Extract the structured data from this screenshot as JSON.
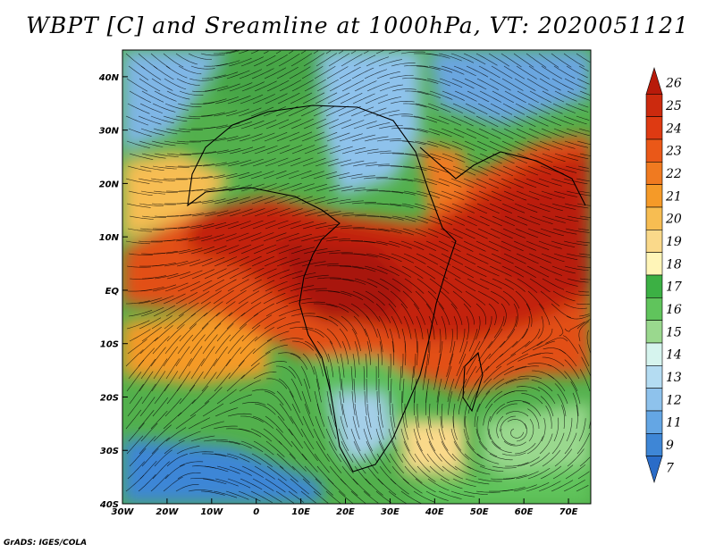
{
  "title": "WBPT [C] and Sreamline at 1000hPa, VT: 2020051121",
  "credit": "GrADS: IGES/COLA",
  "chart_data": {
    "type": "heatmap",
    "title": "WBPT [C] and Sreamline at 1000hPa, VT: 2020051121",
    "variable": "WBPT [C]",
    "overlay": "streamlines",
    "level": "1000hPa",
    "valid_time": "2020051121",
    "x_range": [
      -30,
      75
    ],
    "y_range": [
      -40,
      45
    ],
    "x_ticks": [
      {
        "value": -30,
        "label": "30W"
      },
      {
        "value": -20,
        "label": "20W"
      },
      {
        "value": -10,
        "label": "10W"
      },
      {
        "value": 0,
        "label": "0"
      },
      {
        "value": 10,
        "label": "10E"
      },
      {
        "value": 20,
        "label": "20E"
      },
      {
        "value": 30,
        "label": "30E"
      },
      {
        "value": 40,
        "label": "40E"
      },
      {
        "value": 50,
        "label": "50E"
      },
      {
        "value": 60,
        "label": "60E"
      },
      {
        "value": 70,
        "label": "70E"
      }
    ],
    "y_ticks": [
      {
        "value": 40,
        "label": "40N"
      },
      {
        "value": 30,
        "label": "30N"
      },
      {
        "value": 20,
        "label": "20N"
      },
      {
        "value": 10,
        "label": "10N"
      },
      {
        "value": 0,
        "label": "EQ"
      },
      {
        "value": -10,
        "label": "10S"
      },
      {
        "value": -20,
        "label": "20S"
      },
      {
        "value": -30,
        "label": "30S"
      },
      {
        "value": -40,
        "label": "40S"
      }
    ],
    "colorbar": {
      "labels": [
        "26",
        "25",
        "24",
        "23",
        "22",
        "21",
        "20",
        "19",
        "18",
        "17",
        "16",
        "15",
        "14",
        "13",
        "12",
        "11",
        "9",
        "7"
      ],
      "colors": [
        "#b81a0a",
        "#cc2a0e",
        "#de3a12",
        "#ea5818",
        "#f07a20",
        "#f59a28",
        "#f7bd52",
        "#fad98a",
        "#fff5b8",
        "#3cb044",
        "#60c45c",
        "#9ad88e",
        "#d6f4ee",
        "#b4dcf2",
        "#8ec2ec",
        "#64a6e4",
        "#3e86d6",
        "#2a6cc8"
      ]
    }
  }
}
